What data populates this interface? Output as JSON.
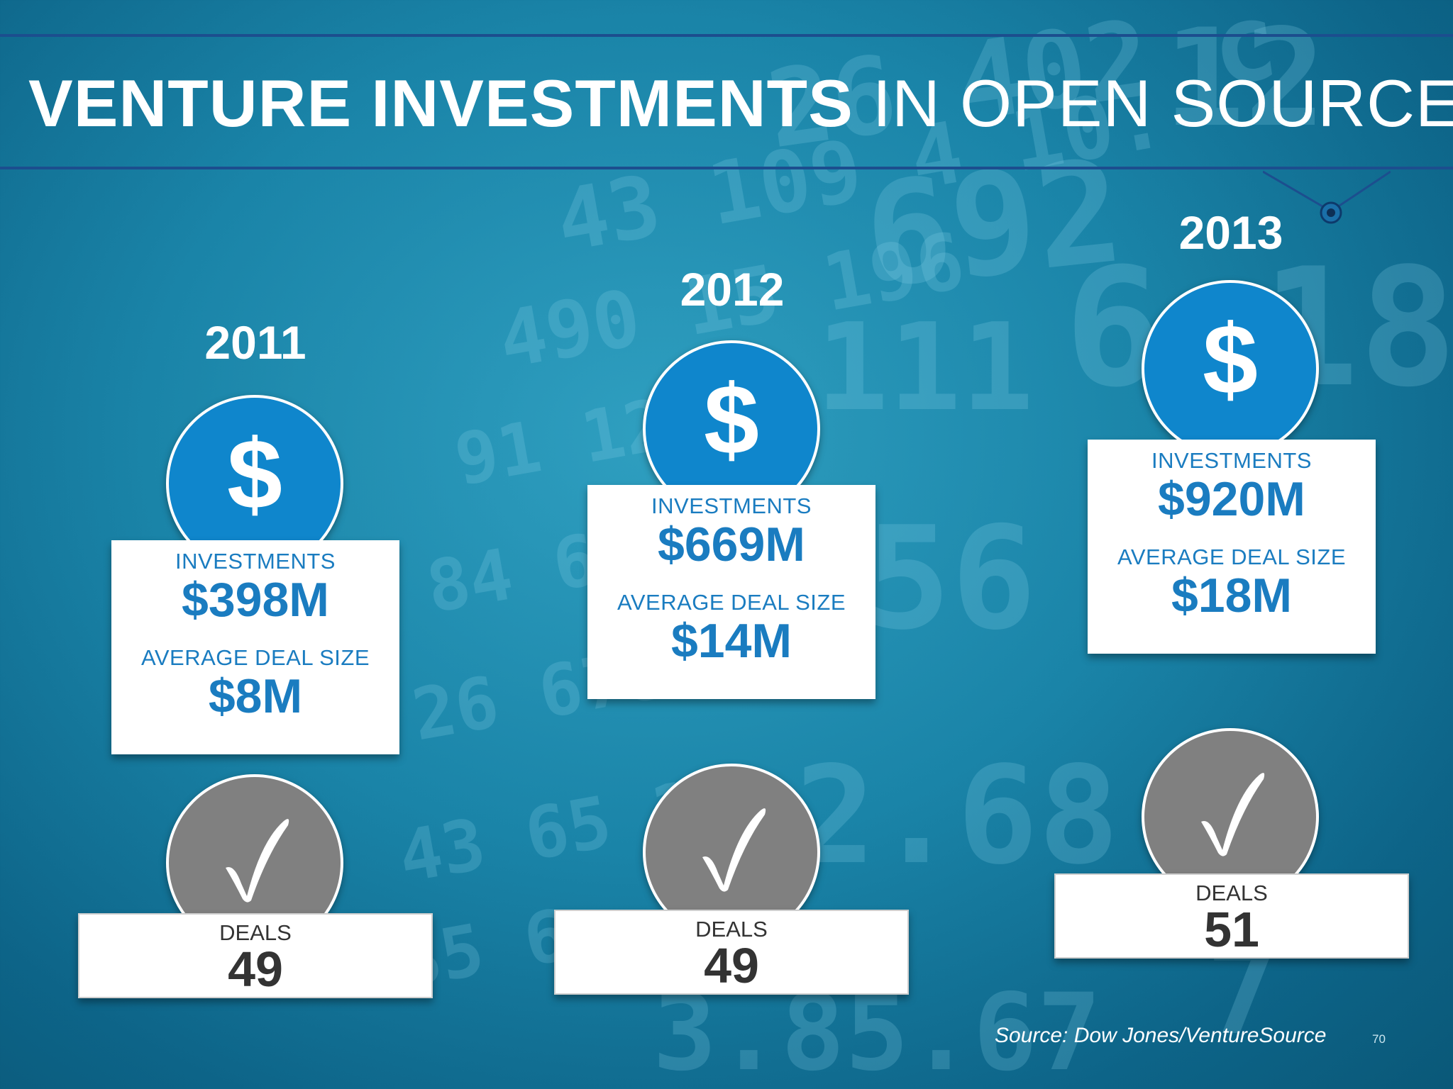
{
  "title": {
    "bold": "VENTURE INVESTMENTS",
    "rest": " IN OPEN SOURCE"
  },
  "icons": {
    "investment": "dollar-icon",
    "deals": "checkmark-icon"
  },
  "colors": {
    "accent_blue": "#0f86cc",
    "label_blue": "#1a7cc0",
    "deal_gray": "#808080"
  },
  "years": [
    {
      "year": "2011",
      "investments_label": "INVESTMENTS",
      "investments": "$398M",
      "avg_label": "AVERAGE DEAL SIZE",
      "avg": "$8M",
      "deals_label": "DEALS",
      "deals": "49",
      "dollar": "$"
    },
    {
      "year": "2012",
      "investments_label": "INVESTMENTS",
      "investments": "$669M",
      "avg_label": "AVERAGE DEAL SIZE",
      "avg": "$14M",
      "deals_label": "DEALS",
      "deals": "49",
      "dollar": "$"
    },
    {
      "year": "2013",
      "investments_label": "INVESTMENTS",
      "investments": "$920M",
      "avg_label": "AVERAGE DEAL SIZE",
      "avg": "$18M",
      "deals_label": "DEALS",
      "deals": "51",
      "dollar": "$"
    }
  ],
  "source": "Source: Dow Jones/VentureSource",
  "page_number": "70"
}
